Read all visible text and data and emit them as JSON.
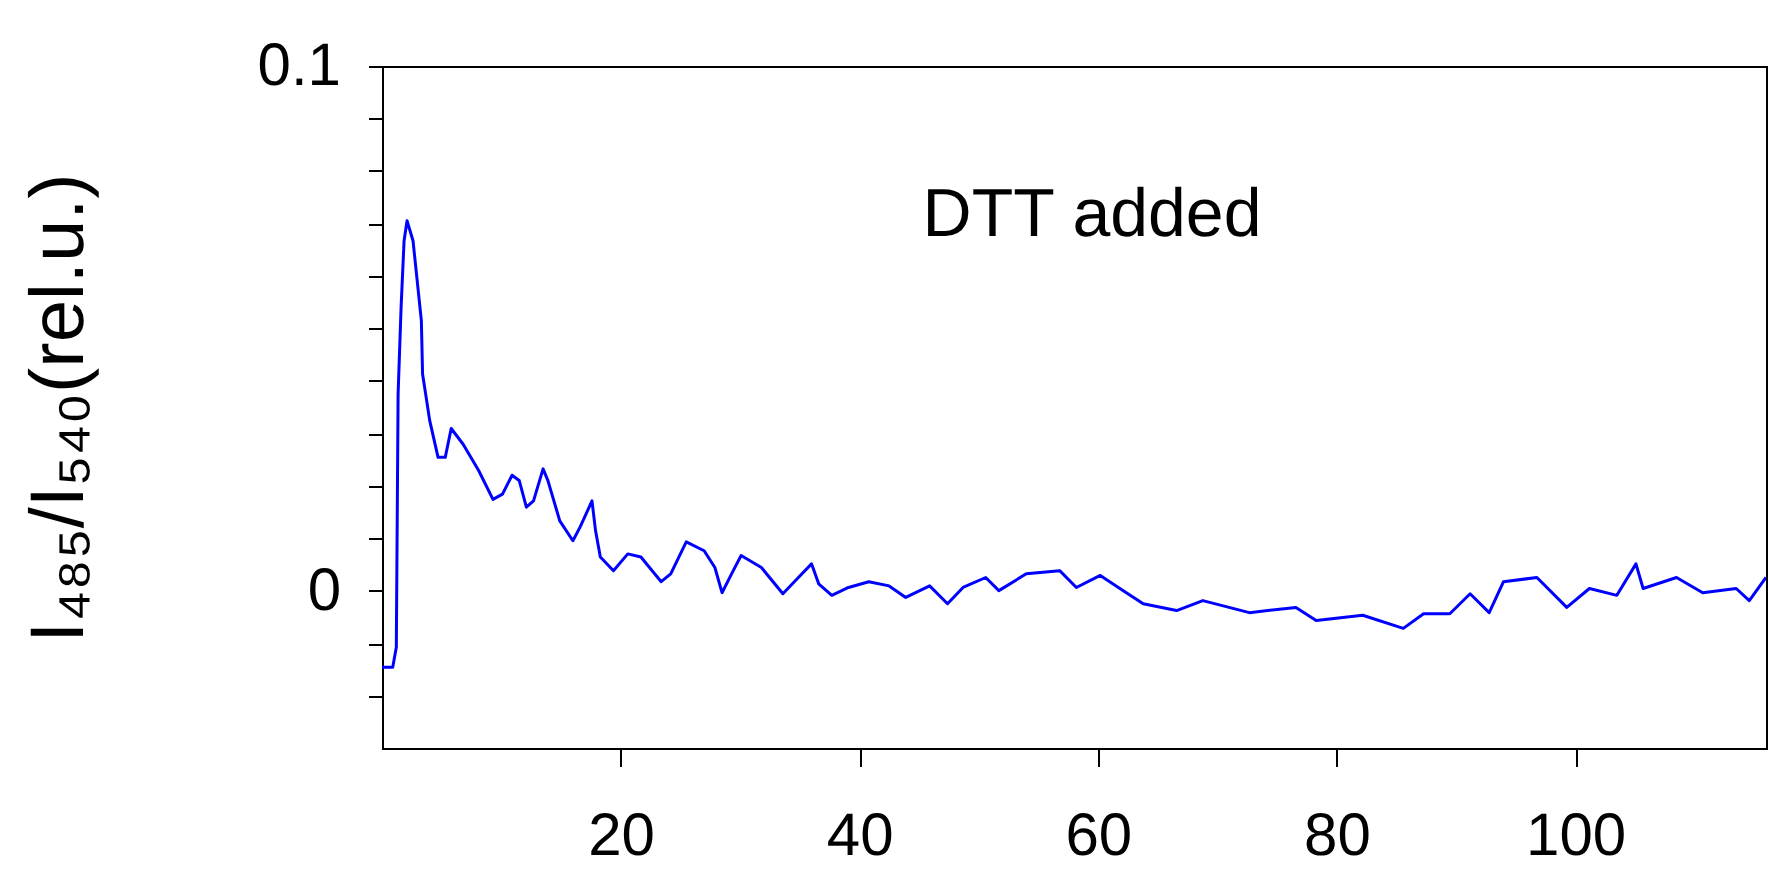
{
  "chart_data": {
    "type": "line",
    "ylabel": "I₄₈₅/I₅₄₀(rel.u.)",
    "annotations": [
      "DTT added"
    ],
    "x": [
      0,
      0.9,
      1.2,
      1.35,
      1.6,
      1.85,
      2.1,
      2.6,
      3.3,
      3.4,
      4.0,
      4.7,
      5.3,
      5.8,
      6.8,
      8.1,
      9.3,
      10.1,
      10.9,
      11.5,
      12.1,
      12.7,
      13.5,
      13.9,
      14.9,
      16.0,
      16.6,
      17.6,
      17.9,
      18.3,
      19.4,
      20.6,
      21.7,
      23.4,
      24.2,
      25.5,
      27.0,
      27.9,
      28.5,
      29.3,
      30.1,
      31.8,
      33.6,
      34.9,
      36.0,
      36.6,
      37.7,
      39.1,
      40.8,
      42.5,
      43.9,
      45.9,
      47.4,
      48.7,
      50.6,
      51.7,
      54.0,
      56.8,
      58.2,
      60.2,
      62.1,
      63.8,
      66.6,
      68.8,
      72.7,
      76.6,
      78.3,
      82.2,
      85.6,
      87.3,
      89.5,
      91.2,
      92.8,
      94.0,
      96.8,
      99.3,
      101.2,
      103.5,
      105.1,
      105.7,
      108.5,
      110.7,
      113.5,
      114.6,
      116.0
    ],
    "series": [
      {
        "color": "#0000ff",
        "values": [
          -0.0146,
          -0.0146,
          -0.0108,
          0.0375,
          0.054,
          0.0667,
          0.0705,
          0.0667,
          0.0514,
          0.0413,
          0.0324,
          0.0254,
          0.0254,
          0.0309,
          0.0279,
          0.0229,
          0.0174,
          0.0184,
          0.022,
          0.021,
          0.0159,
          0.0171,
          0.0232,
          0.021,
          0.0133,
          0.0095,
          0.0121,
          0.0171,
          0.0114,
          0.0064,
          0.0038,
          0.007,
          0.0064,
          0.0017,
          0.0032,
          0.0093,
          0.0076,
          0.0044,
          -0.0004,
          0.0032,
          0.0067,
          0.0044,
          -0.0006,
          0.0025,
          0.0051,
          0.0013,
          -0.0009,
          0.0006,
          0.0017,
          0.0009,
          -0.0013,
          0.0009,
          -0.0025,
          0.0006,
          0.0025,
          0,
          0.0032,
          0.0038,
          0.0006,
          0.0029,
          0,
          -0.0025,
          -0.0038,
          -0.0019,
          -0.0042,
          -0.0032,
          -0.0057,
          -0.0047,
          -0.0072,
          -0.0044,
          -0.0044,
          -0.0006,
          -0.0042,
          0.0017,
          0.0025,
          -0.0032,
          0.0004,
          -0.0009,
          0.0051,
          0.0004,
          0.0025,
          -0.0004,
          0.0004,
          -0.0019,
          0.0025
        ]
      }
    ],
    "xlim": [
      0,
      116
    ],
    "xticks": [
      20,
      40,
      60,
      80,
      100
    ],
    "ylim": [
      -0.03,
      0.1
    ],
    "yticks": [
      {
        "value": -0.02,
        "label": null
      },
      {
        "value": -0.01,
        "label": null
      },
      0,
      {
        "value": 0.01,
        "label": null
      },
      {
        "value": 0.02,
        "label": null
      },
      {
        "value": 0.03,
        "label": null
      },
      {
        "value": 0.04,
        "label": null
      },
      {
        "value": 0.05,
        "label": null
      },
      {
        "value": 0.06,
        "label": null
      },
      {
        "value": 0.07,
        "label": null
      },
      {
        "value": 0.08,
        "label": null
      },
      {
        "value": 0.09,
        "label": null
      },
      {
        "value": 0.1,
        "label": "0.1"
      }
    ]
  }
}
